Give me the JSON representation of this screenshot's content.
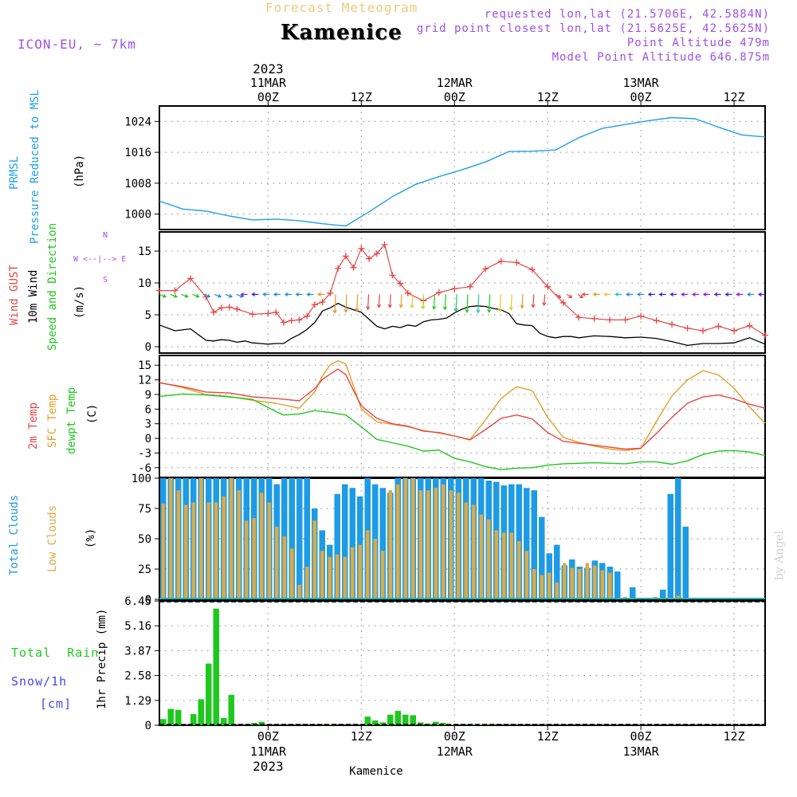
{
  "header": {
    "subtitle_faded": "Forecast Meteogram",
    "title": "Kamenice",
    "model": "ICON-EU, ~ 7km",
    "requested": "requested lon,lat (21.5706E, 42.5884N)",
    "grid_point": "grid point closest lon,lat (21.5625E, 42.5625N)",
    "point_altitude": "Point Altitude 479m",
    "model_altitude": "Model Point Altitude 646.875m",
    "footer_name": "Kamenice",
    "watermark": "by Angel"
  },
  "time_axis": {
    "year": "2023",
    "hour_ticks": [
      "00Z",
      "12Z",
      "00Z",
      "12Z",
      "00Z",
      "12Z"
    ],
    "date_labels": [
      "11MAR",
      "12MAR",
      "13MAR"
    ],
    "start_time": "10MAR 12Z",
    "end_time": "13MAR 18Z"
  },
  "panel_labels": {
    "pressure": [
      "PRMSL",
      "Pressure Reduced to MSL",
      "(hPa)"
    ],
    "wind": [
      "Wind GUST",
      "10m Wind",
      "Speed and Direction",
      "(m/s)"
    ],
    "compass": [
      "N",
      "W <--|--> E",
      "S"
    ],
    "temp": [
      "2m Temp",
      "SFC Temp",
      "dewpt Temp",
      "(C)"
    ],
    "clouds": [
      "Total Clouds",
      "Low Clouds",
      "(%)"
    ],
    "precip_y": "1hr Precip (mm)",
    "precip_side": [
      "Total  Rain",
      "Snow/1h",
      "[cm]"
    ]
  },
  "colors": {
    "pressure": "#1fa0e6",
    "gust": "#e64646",
    "wind": "#000000",
    "temp2m": "#e64646",
    "sfc": "#e6a028",
    "dewpt": "#1ec81e",
    "total_clouds": "#1e9be6",
    "low_clouds": "#dcaa46",
    "rain": "#1ec81e",
    "snow": "#4646e6",
    "header_purple": "#a050e6",
    "faded": "#f0c87a"
  },
  "chart_data": [
    {
      "type": "line",
      "name": "pressure",
      "ylabel": "(hPa)",
      "ylim": [
        996,
        1028
      ],
      "yticks": [
        1000,
        1008,
        1016,
        1024
      ],
      "grid": true,
      "series": [
        {
          "name": "PRMSL",
          "x": [
            0,
            3,
            6,
            9,
            12,
            15,
            18,
            21,
            24,
            27,
            30,
            33,
            36,
            39,
            42,
            45,
            48,
            51,
            54,
            57,
            60,
            63,
            66,
            69,
            72,
            75,
            78
          ],
          "values": [
            1003.4,
            1001.3,
            1000.8,
            999.5,
            998.5,
            998.7,
            998.3,
            997.5,
            996.9,
            1000.6,
            1004.5,
            1007.7,
            1009.7,
            1011.5,
            1013.5,
            1016.2,
            1016.3,
            1016.6,
            1019.8,
            1022.2,
            1023.2,
            1024.2,
            1025.0,
            1024.7,
            1022.5,
            1020.5,
            1020.0
          ]
        }
      ]
    },
    {
      "type": "line",
      "name": "wind",
      "ylabel": "(m/s)",
      "ylim": [
        -1,
        18
      ],
      "yticks": [
        0,
        5,
        10,
        15
      ],
      "grid": true,
      "series": [
        {
          "name": "Wind GUST",
          "x": [
            0,
            2,
            4,
            6,
            7,
            8,
            9,
            10,
            12,
            14,
            15,
            16,
            17,
            18,
            19,
            20,
            21,
            22,
            23,
            24,
            25,
            26,
            27,
            28,
            29,
            30,
            31,
            32,
            34,
            36,
            38,
            40,
            42,
            44,
            46,
            48,
            50,
            52,
            54,
            56,
            58,
            60,
            62,
            64,
            66,
            68,
            70,
            72,
            74,
            76,
            78
          ],
          "values": [
            8.8,
            8.8,
            10.7,
            7.8,
            5.4,
            6.1,
            6.2,
            5.9,
            5.1,
            5.2,
            5.4,
            3.8,
            4.1,
            4.2,
            4.8,
            6.6,
            7.0,
            8.4,
            12.3,
            14.2,
            12.4,
            15.4,
            13.8,
            14.6,
            16.0,
            11.2,
            9.9,
            8.4,
            7.2,
            8.5,
            9.1,
            9.4,
            12.2,
            13.4,
            13.2,
            12.1,
            9.4,
            6.9,
            4.6,
            4.4,
            4.2,
            4.2,
            4.8,
            4.1,
            3.5,
            2.9,
            2.5,
            3.2,
            2.5,
            3.3,
            1.8
          ]
        },
        {
          "name": "10m Wind",
          "x": [
            0,
            2,
            4,
            6,
            7,
            8,
            9,
            10,
            11,
            12,
            13,
            14,
            15,
            16,
            17,
            18,
            19,
            20,
            21,
            22,
            23,
            24,
            25,
            26,
            27,
            28,
            29,
            30,
            31,
            32,
            33,
            34,
            35,
            36,
            37,
            38,
            39,
            40,
            41,
            42,
            43,
            44,
            45,
            46,
            47,
            48,
            49,
            50,
            51,
            52,
            53,
            54,
            56,
            58,
            60,
            62,
            64,
            66,
            68,
            70,
            72,
            74,
            76,
            78
          ],
          "values": [
            3.4,
            2.5,
            2.8,
            1.0,
            0.9,
            1.1,
            1.0,
            0.7,
            0.9,
            0.6,
            0.5,
            0.4,
            0.5,
            0.5,
            1.3,
            1.9,
            2.7,
            3.8,
            5.6,
            6.1,
            6.8,
            6.2,
            5.8,
            5.4,
            4.3,
            3.2,
            2.8,
            3.2,
            3.0,
            3.4,
            3.2,
            3.9,
            4.2,
            4.3,
            4.5,
            5.3,
            5.9,
            6.3,
            6.4,
            6.3,
            6.0,
            5.8,
            5.2,
            3.6,
            3.4,
            3.3,
            2.1,
            1.6,
            1.4,
            1.6,
            1.6,
            1.4,
            1.7,
            1.6,
            1.4,
            1.5,
            1.3,
            0.8,
            0.2,
            0.5,
            0.5,
            0.6,
            1.4,
            0.4
          ]
        }
      ],
      "wind_barb_colors": [
        "#1ec81e",
        "#1ec81e",
        "#1ec81e",
        "#1ec81e",
        "#1e8cdc",
        "#1e8cdc",
        "#1e8cdc",
        "#1e8cdc",
        "#8c1edc",
        "#3c1edc",
        "#1e8cdc",
        "#1e8cdc",
        "#1e8cdc",
        "#1e8cdc",
        "#1e8cdc",
        "#e69628",
        "#e69628",
        "#e69628",
        "#e69628",
        "#e64646",
        "#e64646",
        "#e64646",
        "#e6a028",
        "#e6c828",
        "#aadc1e",
        "#1ec81e",
        "#1ec81e",
        "#1ec864",
        "#1ec81e",
        "#1ec8a0",
        "#1ec81e",
        "#e6c828",
        "#e6c828",
        "#e69628",
        "#e64646",
        "#e64646",
        "#e64646",
        "#e64646",
        "#e64646",
        "#e64646",
        "#e69628",
        "#e6c828",
        "#1ec8a0",
        "#1e8cdc",
        "#1e8cdc",
        "#3c1edc",
        "#3c1edc",
        "#3c1edc",
        "#8c1edc",
        "#8c1edc",
        "#8c1edc",
        "#3c1edc",
        "#3c1edc",
        "#8c1edc",
        "#1e8cdc",
        "#3c1edc"
      ]
    },
    {
      "type": "line",
      "name": "temperature",
      "ylabel": "(C)",
      "ylim": [
        -8,
        17
      ],
      "yticks": [
        -6,
        -3,
        0,
        3,
        6,
        9,
        12,
        15
      ],
      "grid": true,
      "series": [
        {
          "name": "2m Temp",
          "x": [
            0,
            3,
            6,
            9,
            12,
            15,
            18,
            20,
            21,
            22,
            23,
            24,
            25,
            26,
            28,
            30,
            32,
            34,
            36,
            38,
            40,
            42,
            44,
            46,
            48,
            50,
            52,
            54,
            56,
            58,
            60,
            62,
            64,
            66,
            68,
            70,
            72,
            74,
            76,
            78
          ],
          "values": [
            11.4,
            10.6,
            9.5,
            9.3,
            8.5,
            8.2,
            7.7,
            10.2,
            12.1,
            13.2,
            14.2,
            13.1,
            9.8,
            6.7,
            4.1,
            3.0,
            2.5,
            1.5,
            1.2,
            0.5,
            -0.3,
            1.8,
            4.1,
            4.8,
            4.0,
            1.2,
            -0.6,
            -1.0,
            -1.4,
            -1.8,
            -2.2,
            -2.0,
            1.0,
            4.3,
            7.2,
            8.5,
            8.9,
            8.1,
            7.0,
            6.2
          ]
        },
        {
          "name": "SFC Temp",
          "x": [
            0,
            3,
            6,
            9,
            12,
            15,
            18,
            20,
            21,
            22,
            23,
            24,
            25,
            26,
            28,
            30,
            32,
            34,
            36,
            38,
            40,
            42,
            44,
            46,
            48,
            50,
            52,
            54,
            56,
            58,
            60,
            62,
            64,
            66,
            68,
            70,
            72,
            74,
            76,
            78
          ],
          "values": [
            11.5,
            10.4,
            9.0,
            8.6,
            7.8,
            7.2,
            6.2,
            9.5,
            12.8,
            15.1,
            15.9,
            15.3,
            10.7,
            6.0,
            3.4,
            2.9,
            2.4,
            1.6,
            1.1,
            0.5,
            -0.2,
            3.8,
            8.2,
            10.6,
            9.8,
            4.3,
            0.2,
            -0.8,
            -1.6,
            -2.2,
            -2.5,
            -2.1,
            3.5,
            8.7,
            12.0,
            13.9,
            13.0,
            10.3,
            6.4,
            3.1
          ]
        },
        {
          "name": "dewpt Temp",
          "x": [
            0,
            3,
            6,
            9,
            12,
            15,
            16,
            18,
            20,
            22,
            24,
            26,
            28,
            30,
            32,
            34,
            36,
            38,
            40,
            42,
            44,
            46,
            48,
            50,
            52,
            54,
            56,
            58,
            60,
            62,
            64,
            66,
            68,
            70,
            72,
            74,
            76,
            78
          ],
          "values": [
            8.6,
            9.1,
            8.9,
            8.5,
            8.0,
            5.5,
            4.8,
            5.0,
            5.7,
            5.3,
            4.8,
            2.4,
            -0.2,
            -0.9,
            -1.6,
            -2.6,
            -2.4,
            -4.1,
            -4.8,
            -5.8,
            -6.4,
            -6.1,
            -6.0,
            -5.5,
            -5.2,
            -5.1,
            -5.0,
            -5.1,
            -5.2,
            -4.8,
            -4.8,
            -5.3,
            -4.6,
            -3.3,
            -2.6,
            -2.5,
            -2.8,
            -3.5
          ]
        }
      ]
    },
    {
      "type": "bar",
      "name": "clouds",
      "ylabel": "(%)",
      "ylim": [
        0,
        100
      ],
      "yticks": [
        0,
        25,
        50,
        75,
        100
      ],
      "grid": true,
      "series": [
        {
          "name": "Total Clouds",
          "values": [
            100,
            100,
            100,
            100,
            100,
            100,
            100,
            100,
            100,
            100,
            100,
            100,
            100,
            100,
            100,
            95,
            100,
            100,
            100,
            100,
            75,
            57,
            45,
            87,
            95,
            92,
            85,
            100,
            95,
            92,
            88,
            100,
            100,
            100,
            100,
            100,
            100,
            100,
            100,
            100,
            100,
            100,
            100,
            98,
            97,
            94,
            95,
            95,
            92,
            90,
            68,
            38,
            45,
            28,
            33,
            27,
            26,
            32,
            30,
            27,
            23,
            0,
            10,
            0,
            0,
            0,
            8,
            87,
            100,
            60,
            0,
            0,
            0,
            0,
            0,
            0,
            0,
            0,
            0,
            0
          ]
        },
        {
          "name": "Low Clouds",
          "values": [
            79,
            100,
            90,
            78,
            80,
            100,
            80,
            80,
            85,
            100,
            90,
            65,
            67,
            88,
            80,
            60,
            52,
            42,
            12,
            27,
            65,
            40,
            35,
            37,
            35,
            43,
            45,
            57,
            50,
            40,
            90,
            95,
            100,
            100,
            90,
            90,
            92,
            95,
            90,
            88,
            80,
            78,
            70,
            66,
            57,
            55,
            55,
            48,
            40,
            25,
            20,
            22,
            14,
            30,
            26,
            25,
            30,
            28,
            24,
            22,
            0,
            2,
            0,
            0,
            0,
            2,
            0,
            0,
            3,
            0,
            0,
            0,
            0,
            0,
            0,
            0,
            0,
            0,
            0,
            0
          ]
        }
      ]
    },
    {
      "type": "bar",
      "name": "precipitation",
      "ylabel": "1hr Precip (mm)",
      "ylim": [
        0,
        6.45
      ],
      "yticks": [
        0,
        1.29,
        2.58,
        3.87,
        5.16,
        6.45
      ],
      "grid": true,
      "series": [
        {
          "name": "Total Rain",
          "values": [
            0.32,
            0.85,
            0.8,
            0.0,
            0.58,
            1.35,
            3.2,
            6.05,
            0.38,
            1.58,
            0.0,
            0.0,
            0.12,
            0.18,
            0.0,
            0.0,
            0.0,
            0.0,
            0.0,
            0.0,
            0.0,
            0.0,
            0.05,
            0.0,
            0.0,
            0.0,
            0.0,
            0.45,
            0.25,
            0.15,
            0.55,
            0.75,
            0.55,
            0.52,
            0.15,
            0.08,
            0.18,
            0.12,
            0.05,
            0.0,
            0.0,
            0.02,
            0.03,
            0.02,
            0.0,
            0.0,
            0.0,
            0.0,
            0.0,
            0.0,
            0.0,
            0.0,
            0.0,
            0.0,
            0.0,
            0.0,
            0.0,
            0.0,
            0.0,
            0.0,
            0.0,
            0.0,
            0.0,
            0.0,
            0.0,
            0.0,
            0.0,
            0.0,
            0.0,
            0.0,
            0.0,
            0.0,
            0.0,
            0.0,
            0.0,
            0.0,
            0.0,
            0.0,
            0.0,
            0.0
          ]
        }
      ]
    }
  ]
}
